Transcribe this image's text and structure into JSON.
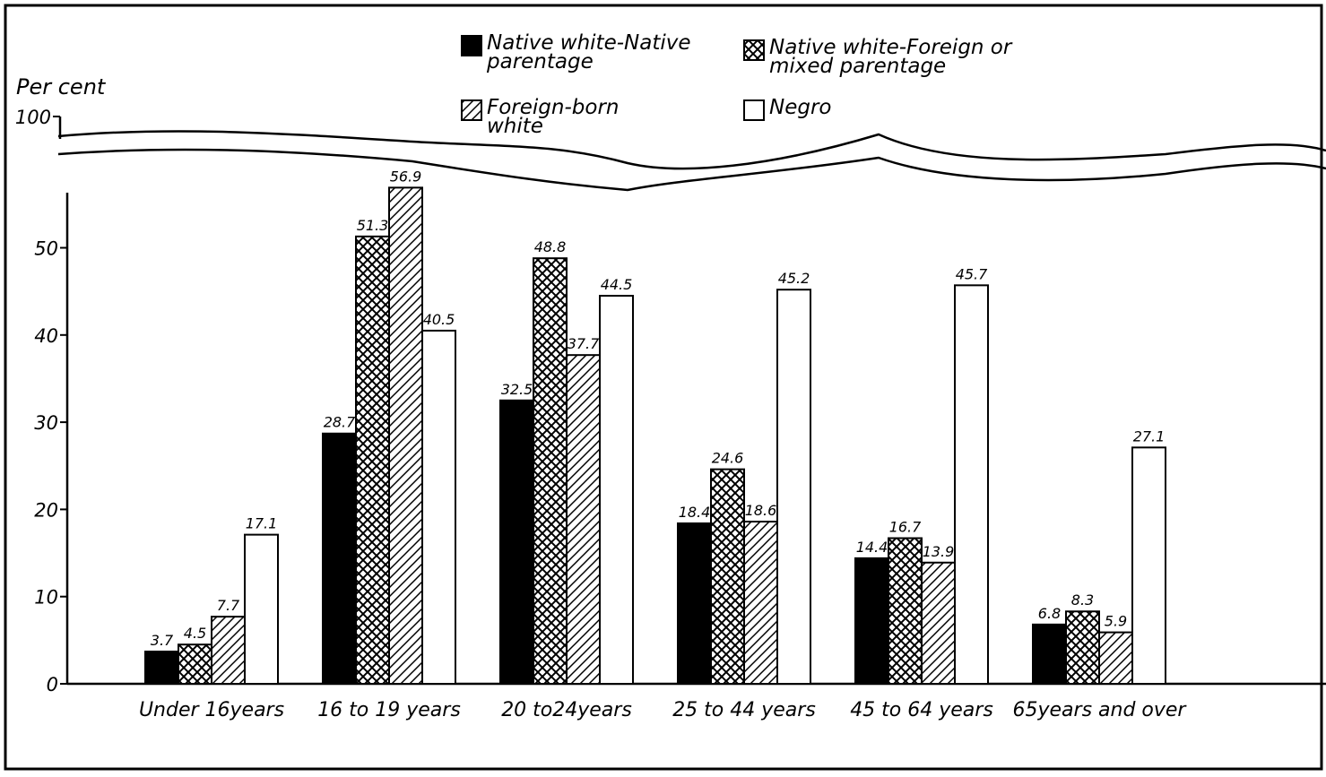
{
  "chart_data": {
    "type": "bar",
    "y_label": "Per cent",
    "categories": [
      "Under 16years",
      "16 to 19 years",
      "20 to24years",
      "25 to 44 years",
      "45 to 64 years",
      "65years and over"
    ],
    "series": [
      {
        "name": "Native white-Native parentage",
        "color": "#000000",
        "pattern": "solid",
        "values": [
          3.7,
          28.7,
          32.5,
          18.4,
          14.4,
          6.8
        ]
      },
      {
        "name": "Native white-Foreign or mixed parentage",
        "color": "#000000",
        "pattern": "crosshatch",
        "values": [
          4.5,
          51.3,
          48.8,
          24.6,
          16.7,
          8.3
        ]
      },
      {
        "name": "Foreign-born white",
        "color": "#000000",
        "pattern": "hatch",
        "values": [
          7.7,
          56.9,
          37.7,
          18.6,
          13.9,
          5.9
        ]
      },
      {
        "name": "Negro",
        "color": "#000000",
        "pattern": "none",
        "values": [
          17.1,
          40.5,
          44.5,
          45.2,
          45.7,
          27.1
        ]
      }
    ],
    "ylim": [
      0,
      100
    ],
    "axis_break": [
      58,
      100
    ],
    "yticks": [
      0,
      10,
      20,
      30,
      40,
      50,
      100
    ]
  }
}
